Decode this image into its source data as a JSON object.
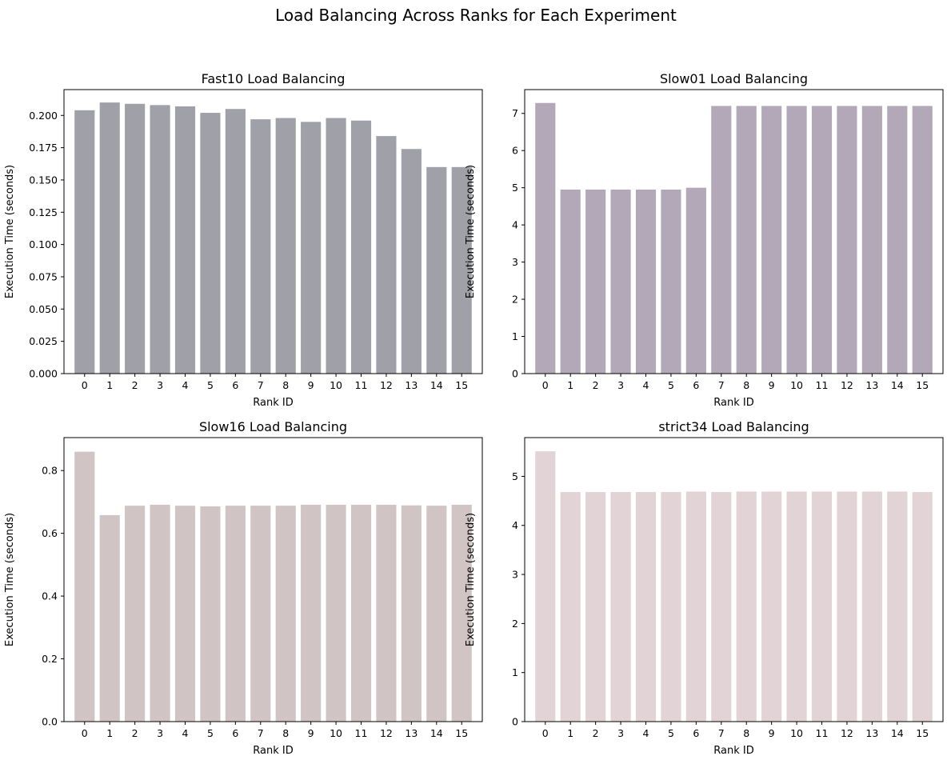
{
  "suptitle": "Load Balancing Across Ranks for Each Experiment",
  "chart_data": [
    {
      "type": "bar",
      "title": "Fast10 Load Balancing",
      "xlabel": "Rank ID",
      "ylabel": "Execution Time (seconds)",
      "color": "#a0a0a8",
      "categories": [
        "0",
        "1",
        "2",
        "3",
        "4",
        "5",
        "6",
        "7",
        "8",
        "9",
        "10",
        "11",
        "12",
        "13",
        "14",
        "15"
      ],
      "values": [
        0.204,
        0.21,
        0.209,
        0.208,
        0.207,
        0.202,
        0.205,
        0.197,
        0.198,
        0.195,
        0.198,
        0.196,
        0.184,
        0.174,
        0.16,
        0.16
      ],
      "ylim": [
        0,
        0.22
      ],
      "yticks": [
        0.0,
        0.025,
        0.05,
        0.075,
        0.1,
        0.125,
        0.15,
        0.175,
        0.2
      ],
      "ytick_labels": [
        "0.000",
        "0.025",
        "0.050",
        "0.075",
        "0.100",
        "0.125",
        "0.150",
        "0.175",
        "0.200"
      ],
      "grid": false
    },
    {
      "type": "bar",
      "title": "Slow01 Load Balancing",
      "xlabel": "Rank ID",
      "ylabel": "Execution Time (seconds)",
      "color": "#b3a8b7",
      "categories": [
        "0",
        "1",
        "2",
        "3",
        "4",
        "5",
        "6",
        "7",
        "8",
        "9",
        "10",
        "11",
        "12",
        "13",
        "14",
        "15"
      ],
      "values": [
        7.28,
        4.95,
        4.95,
        4.95,
        4.95,
        4.95,
        5.0,
        7.2,
        7.2,
        7.2,
        7.2,
        7.2,
        7.2,
        7.2,
        7.2,
        7.2
      ],
      "ylim": [
        0,
        7.64
      ],
      "yticks": [
        0,
        1,
        2,
        3,
        4,
        5,
        6,
        7
      ],
      "ytick_labels": [
        "0",
        "1",
        "2",
        "3",
        "4",
        "5",
        "6",
        "7"
      ],
      "grid": false
    },
    {
      "type": "bar",
      "title": "Slow16 Load Balancing",
      "xlabel": "Rank ID",
      "ylabel": "Execution Time (seconds)",
      "color": "#d0c4c5",
      "categories": [
        "0",
        "1",
        "2",
        "3",
        "4",
        "5",
        "6",
        "7",
        "8",
        "9",
        "10",
        "11",
        "12",
        "13",
        "14",
        "15"
      ],
      "values": [
        0.86,
        0.658,
        0.688,
        0.691,
        0.688,
        0.686,
        0.688,
        0.688,
        0.688,
        0.691,
        0.691,
        0.691,
        0.691,
        0.689,
        0.688,
        0.691
      ],
      "ylim": [
        0,
        0.905
      ],
      "yticks": [
        0.0,
        0.2,
        0.4,
        0.6,
        0.8
      ],
      "ytick_labels": [
        "0.0",
        "0.2",
        "0.4",
        "0.6",
        "0.8"
      ],
      "grid": false
    },
    {
      "type": "bar",
      "title": "strict34 Load Balancing",
      "xlabel": "Rank ID",
      "ylabel": "Execution Time (seconds)",
      "color": "#e2d3d6",
      "categories": [
        "0",
        "1",
        "2",
        "3",
        "4",
        "5",
        "6",
        "7",
        "8",
        "9",
        "10",
        "11",
        "12",
        "13",
        "14",
        "15"
      ],
      "values": [
        5.51,
        4.68,
        4.68,
        4.68,
        4.68,
        4.68,
        4.69,
        4.68,
        4.69,
        4.69,
        4.69,
        4.69,
        4.69,
        4.69,
        4.69,
        4.68
      ],
      "ylim": [
        0,
        5.79
      ],
      "yticks": [
        0,
        1,
        2,
        3,
        4,
        5
      ],
      "ytick_labels": [
        "0",
        "1",
        "2",
        "3",
        "4",
        "5"
      ],
      "grid": false
    }
  ]
}
